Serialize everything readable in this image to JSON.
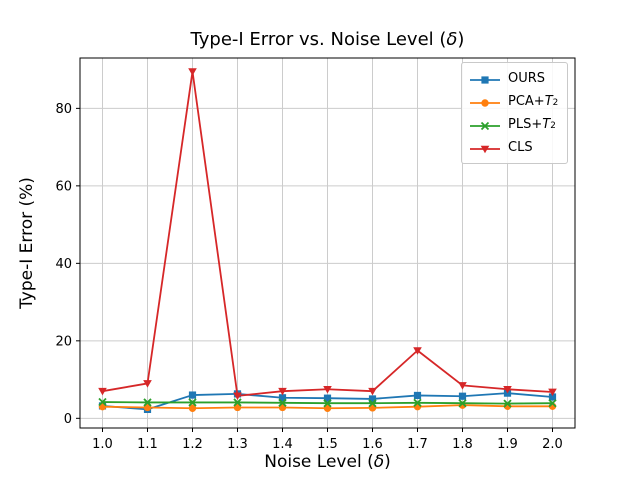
{
  "figure": {
    "background": "#ffffff",
    "plot_border_color": "#000000",
    "grid_color": "#cccccc",
    "tick_label_color": "#000000"
  },
  "chart_data": {
    "type": "line",
    "title": "Type-I Error vs. Noise Level (δ)",
    "xlabel": "Noise Level (δ)",
    "ylabel": "Type-I Error (%)",
    "x": [
      1.0,
      1.1,
      1.2,
      1.3,
      1.4,
      1.5,
      1.6,
      1.7,
      1.8,
      1.9,
      2.0
    ],
    "xtick_labels": [
      "1.0",
      "1.1",
      "1.2",
      "1.3",
      "1.4",
      "1.5",
      "1.6",
      "1.7",
      "1.8",
      "1.9",
      "2.0"
    ],
    "yticks": [
      0,
      20,
      40,
      60,
      80
    ],
    "xlim": [
      0.95,
      2.05
    ],
    "ylim": [
      -2.5,
      93
    ],
    "grid": true,
    "legend_position": "upper right",
    "series": [
      {
        "name": "OURS",
        "color": "#1f77b4",
        "marker": "square",
        "values": [
          3.2,
          2.3,
          6.0,
          6.3,
          5.3,
          5.2,
          5.0,
          5.9,
          5.7,
          6.5,
          5.5
        ]
      },
      {
        "name": "PCA+T^2",
        "color": "#ff7f0e",
        "marker": "circle",
        "values": [
          3.0,
          2.8,
          2.6,
          2.8,
          2.8,
          2.6,
          2.7,
          3.0,
          3.4,
          3.1,
          3.1
        ]
      },
      {
        "name": "PLS+T^2",
        "color": "#2ca02c",
        "marker": "x",
        "values": [
          4.2,
          4.1,
          4.1,
          4.1,
          4.0,
          3.9,
          3.9,
          4.0,
          3.9,
          3.8,
          3.9
        ]
      },
      {
        "name": "CLS",
        "color": "#d62728",
        "marker": "triangle-down",
        "values": [
          7.0,
          9.0,
          89.5,
          5.8,
          7.0,
          7.5,
          7.0,
          17.5,
          8.5,
          7.5,
          6.8
        ]
      }
    ]
  }
}
